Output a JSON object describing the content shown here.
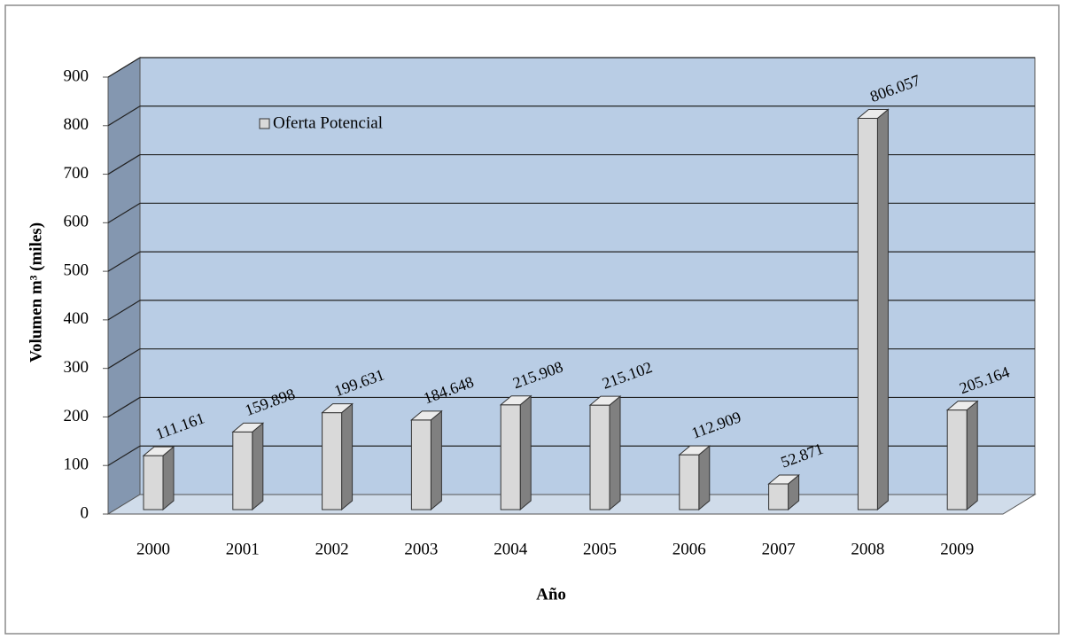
{
  "chart_data": {
    "type": "bar3d",
    "categories": [
      "2000",
      "2001",
      "2002",
      "2003",
      "2004",
      "2005",
      "2006",
      "2007",
      "2008",
      "2009"
    ],
    "series": [
      {
        "name": "Oferta Potencial",
        "color": "#d9d9d9",
        "values": [
          111.161,
          159.898,
          199.631,
          184.648,
          215.908,
          215.102,
          112.909,
          52.871,
          806.057,
          205.164
        ]
      }
    ],
    "ylim": [
      0,
      900
    ],
    "yticks": [
      0,
      100,
      200,
      300,
      400,
      500,
      600,
      700,
      800,
      900
    ],
    "xlabel": "Año",
    "ylabel": "Volumen m³ (miles)",
    "grid": true,
    "legend": "top-left"
  }
}
